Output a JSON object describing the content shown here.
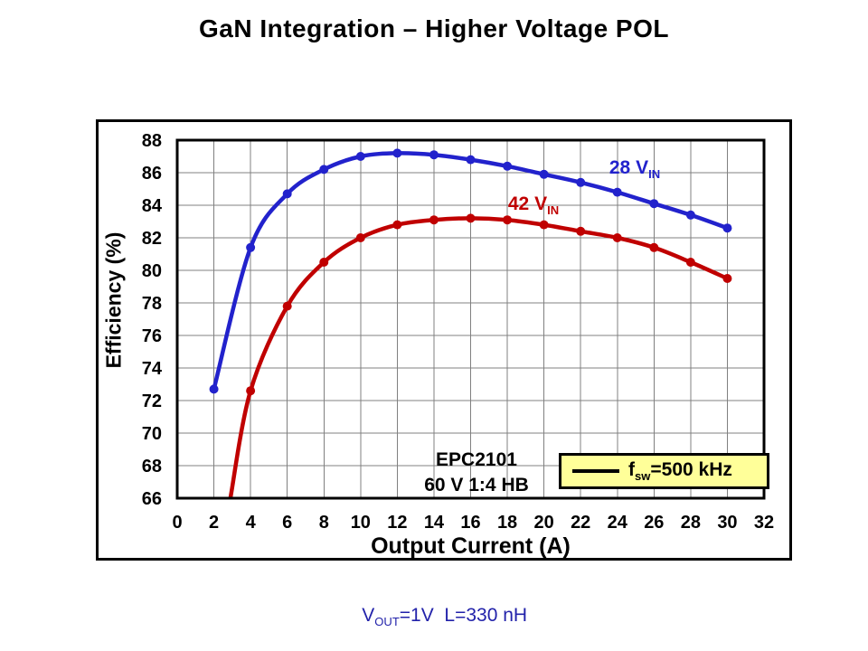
{
  "page": {
    "title": "GaN Integration – Higher Voltage POL",
    "caption": {
      "prefix": "V",
      "sub": "OUT",
      "rest": "=1V  L=330 nH",
      "color": "#2222AA"
    }
  },
  "chart_data": {
    "type": "line",
    "title": "",
    "xlabel": "Output Current (A)",
    "ylabel": "Efficiency (%)",
    "xlim": [
      0,
      32
    ],
    "ylim": [
      66,
      88
    ],
    "x_ticks": [
      0,
      2,
      4,
      6,
      8,
      10,
      12,
      14,
      16,
      18,
      20,
      22,
      24,
      26,
      28,
      30,
      32
    ],
    "y_ticks": [
      66,
      68,
      70,
      72,
      74,
      76,
      78,
      80,
      82,
      84,
      86,
      88
    ],
    "grid": true,
    "grid_color": "#808080",
    "series": [
      {
        "name": "28 VIN",
        "label": {
          "prefix": "28 V",
          "sub": "IN"
        },
        "color": "#2222CC",
        "x": [
          2,
          4,
          6,
          8,
          10,
          12,
          14,
          16,
          18,
          20,
          22,
          24,
          26,
          28,
          30
        ],
        "values": [
          72.7,
          81.4,
          84.7,
          86.2,
          87.0,
          87.2,
          87.1,
          86.8,
          86.4,
          85.9,
          85.4,
          84.8,
          84.1,
          83.4,
          82.6
        ]
      },
      {
        "name": "42 VIN",
        "label": {
          "prefix": "42 V",
          "sub": "IN"
        },
        "color": "#C00000",
        "x": [
          4,
          6,
          8,
          10,
          12,
          14,
          16,
          18,
          20,
          22,
          24,
          26,
          28,
          30
        ],
        "values": [
          72.6,
          77.8,
          80.5,
          82.0,
          82.8,
          83.1,
          83.2,
          83.1,
          82.8,
          82.4,
          82.0,
          81.4,
          80.5,
          79.5
        ],
        "line_start": {
          "x": 2.9,
          "y": 66
        }
      }
    ],
    "annotations": {
      "device": "EPC2101",
      "topology": "60 V 1:4 HB"
    },
    "legend": {
      "prefix": "f",
      "sub": "sw",
      "rest": "=500 kHz",
      "bg": "#FFFF99",
      "position": "inside-bottom-right"
    }
  }
}
